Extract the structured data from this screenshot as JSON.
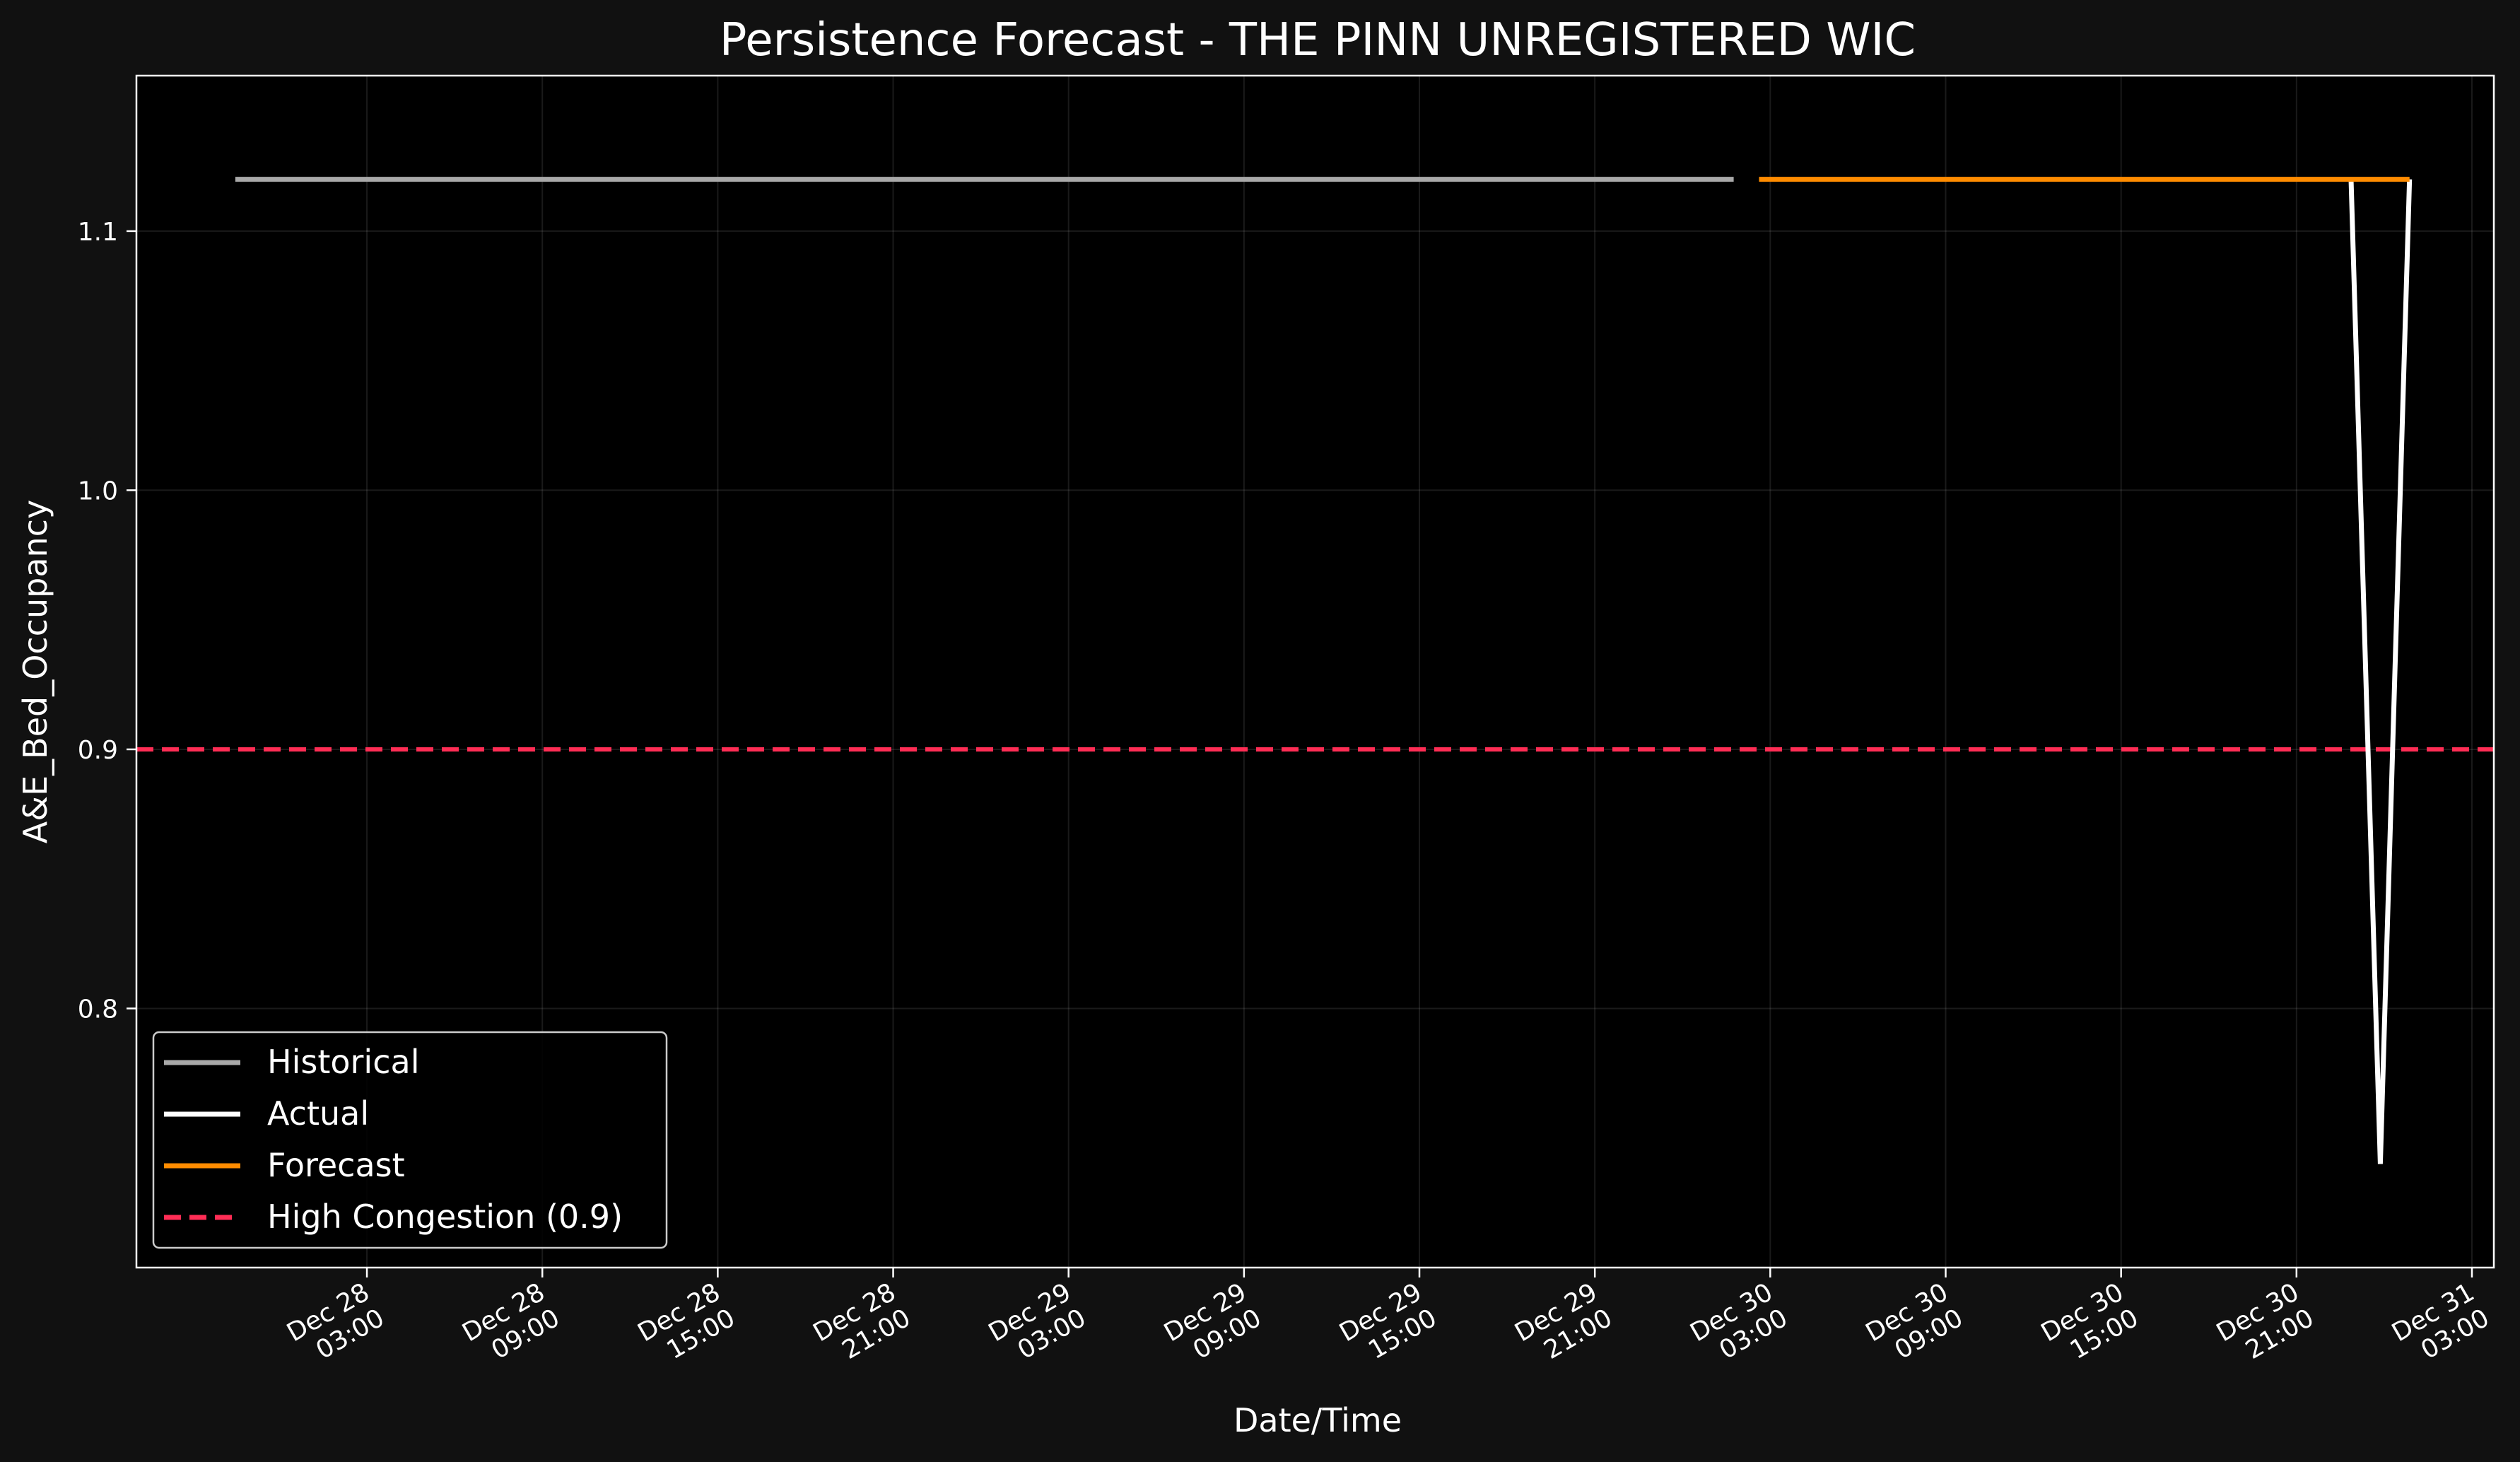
{
  "chart_data": {
    "type": "line",
    "title": "Persistence Forecast - THE PINN UNREGISTERED WIC",
    "xlabel": "Date/Time",
    "ylabel": "A&E_Bed_Occupancy",
    "xlim": [
      "2025-12-27T19:07",
      "2025-12-31T03:45"
    ],
    "ylim": [
      0.7,
      1.16
    ],
    "grid": true,
    "legend_position": "lower-left",
    "x_ticks": [
      {
        "t": "2025-12-28T03:00",
        "line1": "Dec 28",
        "line2": "03:00"
      },
      {
        "t": "2025-12-28T09:00",
        "line1": "Dec 28",
        "line2": "09:00"
      },
      {
        "t": "2025-12-28T15:00",
        "line1": "Dec 28",
        "line2": "15:00"
      },
      {
        "t": "2025-12-28T21:00",
        "line1": "Dec 28",
        "line2": "21:00"
      },
      {
        "t": "2025-12-29T03:00",
        "line1": "Dec 29",
        "line2": "03:00"
      },
      {
        "t": "2025-12-29T09:00",
        "line1": "Dec 29",
        "line2": "09:00"
      },
      {
        "t": "2025-12-29T15:00",
        "line1": "Dec 29",
        "line2": "15:00"
      },
      {
        "t": "2025-12-29T21:00",
        "line1": "Dec 29",
        "line2": "21:00"
      },
      {
        "t": "2025-12-30T03:00",
        "line1": "Dec 30",
        "line2": "03:00"
      },
      {
        "t": "2025-12-30T09:00",
        "line1": "Dec 30",
        "line2": "09:00"
      },
      {
        "t": "2025-12-30T15:00",
        "line1": "Dec 30",
        "line2": "15:00"
      },
      {
        "t": "2025-12-30T21:00",
        "line1": "Dec 30",
        "line2": "21:00"
      },
      {
        "t": "2025-12-31T03:00",
        "line1": "Dec 31",
        "line2": "03:00"
      }
    ],
    "y_ticks": [
      {
        "v": 0.8,
        "label": "0.8"
      },
      {
        "v": 0.9,
        "label": "0.9"
      },
      {
        "v": 1.0,
        "label": "1.0"
      },
      {
        "v": 1.1,
        "label": "1.1"
      }
    ],
    "series": [
      {
        "name": "Historical",
        "color": "#a9a9a9",
        "dash": "solid",
        "points": [
          [
            "2025-12-27T22:30",
            1.12
          ],
          [
            "2025-12-30T01:45",
            1.12
          ]
        ]
      },
      {
        "name": "Actual",
        "color": "#ffffff",
        "dash": "solid",
        "points": [
          [
            "2025-12-30T22:52",
            1.12
          ],
          [
            "2025-12-30T23:52",
            0.74
          ],
          [
            "2025-12-31T00:52",
            1.12
          ]
        ]
      },
      {
        "name": "Forecast",
        "color": "#ff8c00",
        "dash": "solid",
        "points": [
          [
            "2025-12-30T02:37",
            1.12
          ],
          [
            "2025-12-31T00:52",
            1.12
          ]
        ]
      }
    ],
    "reference_lines": [
      {
        "name": "High Congestion (0.9)",
        "y": 0.9,
        "color": "#ff2d55",
        "dash": "dashed"
      }
    ]
  }
}
